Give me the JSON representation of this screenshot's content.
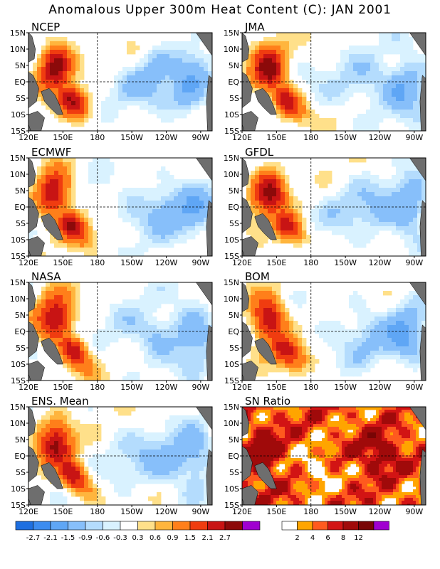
{
  "title": "Anomalous Upper 300m Heat Content (C): JAN 2001",
  "colors": {
    "anomaly": [
      "#1E6FE0",
      "#3C8CF0",
      "#5FA6F5",
      "#87BFFA",
      "#B4DCFD",
      "#D9F2FF",
      "#FFFFFF",
      "#FFE08A",
      "#FFB53D",
      "#FF7F1A",
      "#F03C10",
      "#C81414",
      "#8C0A0A",
      "#A000D0"
    ],
    "sn": [
      "#FFFFFF",
      "#FFA500",
      "#FF5A1E",
      "#D21414",
      "#A00A0A",
      "#780505",
      "#A000D0"
    ],
    "land": "#6E6E6E"
  },
  "map_axes": {
    "lat_labels": [
      "15N",
      "10N",
      "5N",
      "EQ",
      "5S",
      "10S",
      "15S"
    ],
    "lon_labels": [
      "120E",
      "150E",
      "180",
      "150W",
      "120W",
      "90W"
    ]
  },
  "chart_data": [
    {
      "type": "heatmap",
      "title": "NCEP",
      "x_range": [
        "120E",
        "80W"
      ],
      "y_range": [
        "15S",
        "15N"
      ],
      "hotspots": [
        {
          "lon": 145,
          "lat": 5,
          "value": 2.8
        },
        {
          "lon": 155,
          "lat": -6,
          "value": 2.2
        },
        {
          "lon": 230,
          "lat": 6,
          "value": -1.2
        },
        {
          "lon": 255,
          "lat": -4,
          "value": -1.3
        }
      ]
    },
    {
      "type": "heatmap",
      "title": "JMA",
      "x_range": [
        "120E",
        "80W"
      ],
      "y_range": [
        "15S",
        "15N"
      ],
      "hotspots": [
        {
          "lon": 145,
          "lat": 3,
          "value": 2.2
        },
        {
          "lon": 157,
          "lat": -6,
          "value": 1.8
        },
        {
          "lon": 255,
          "lat": -2,
          "value": -0.9
        }
      ]
    },
    {
      "type": "heatmap",
      "title": "ECMWF",
      "x_range": [
        "120E",
        "80W"
      ],
      "y_range": [
        "15S",
        "15N"
      ],
      "hotspots": [
        {
          "lon": 140,
          "lat": 5,
          "value": 2.0
        },
        {
          "lon": 155,
          "lat": -5,
          "value": 1.8
        },
        {
          "lon": 240,
          "lat": 0,
          "value": -1.0
        }
      ]
    },
    {
      "type": "heatmap",
      "title": "GFDL",
      "x_range": [
        "120E",
        "80W"
      ],
      "y_range": [
        "15S",
        "15N"
      ],
      "hotspots": [
        {
          "lon": 145,
          "lat": 5,
          "value": 2.0
        },
        {
          "lon": 158,
          "lat": -7,
          "value": 1.6
        },
        {
          "lon": 270,
          "lat": 0,
          "value": -1.1
        }
      ]
    },
    {
      "type": "heatmap",
      "title": "NASA",
      "x_range": [
        "120E",
        "80W"
      ],
      "y_range": [
        "15S",
        "15N"
      ],
      "hotspots": [
        {
          "lon": 145,
          "lat": 3,
          "value": 2.0
        },
        {
          "lon": 160,
          "lat": -7,
          "value": 1.8
        },
        {
          "lon": 230,
          "lat": -2,
          "value": -0.6
        }
      ]
    },
    {
      "type": "heatmap",
      "title": "BOM",
      "x_range": [
        "120E",
        "80W"
      ],
      "y_range": [
        "15S",
        "15N"
      ],
      "hotspots": [
        {
          "lon": 143,
          "lat": 3,
          "value": 2.0
        },
        {
          "lon": 155,
          "lat": -6,
          "value": 1.8
        },
        {
          "lon": 260,
          "lat": -2,
          "value": -0.9
        }
      ]
    },
    {
      "type": "heatmap",
      "title": "ENS. Mean",
      "x_range": [
        "120E",
        "80W"
      ],
      "y_range": [
        "15S",
        "15N"
      ],
      "hotspots": [
        {
          "lon": 145,
          "lat": 3,
          "value": 2.0
        },
        {
          "lon": 158,
          "lat": -6,
          "value": 2.0
        },
        {
          "lon": 245,
          "lat": -2,
          "value": -0.9
        }
      ]
    },
    {
      "type": "heatmap",
      "title": "SN Ratio",
      "x_range": [
        "120E",
        "80W"
      ],
      "y_range": [
        "15S",
        "15N"
      ],
      "hotspots": [
        {
          "lon": 140,
          "lat": 0,
          "value": 8
        },
        {
          "lon": 235,
          "lat": 2,
          "value": 12
        },
        {
          "lon": 255,
          "lat": -4,
          "value": 10
        }
      ]
    }
  ],
  "legend_anomaly": {
    "ticks": [
      "-2.7",
      "-2.1",
      "-1.5",
      "-0.9",
      "-0.6",
      "-0.3",
      "0.3",
      "0.6",
      "0.9",
      "1.5",
      "2.1",
      "2.7"
    ]
  },
  "legend_sn": {
    "ticks": [
      "2",
      "4",
      "6",
      "8",
      "12"
    ]
  }
}
